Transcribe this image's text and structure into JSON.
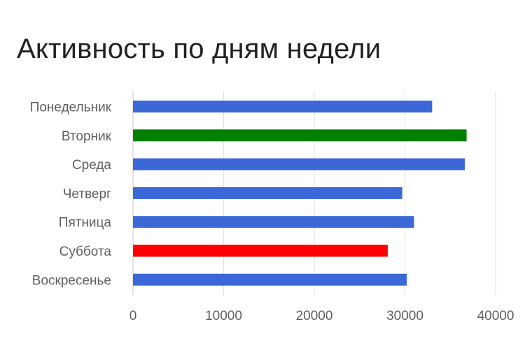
{
  "chart_data": {
    "type": "bar",
    "orientation": "horizontal",
    "title": "Активность по дням недели",
    "xlabel": "",
    "ylabel": "",
    "categories": [
      "Понедельник",
      "Вторник",
      "Среда",
      "Четверг",
      "Пятница",
      "Суббота",
      "Воскресенье"
    ],
    "values": [
      33000,
      36800,
      36600,
      29700,
      31000,
      28100,
      30200
    ],
    "colors": [
      "#3c68d7",
      "#008000",
      "#3c68d7",
      "#3c68d7",
      "#3c68d7",
      "#ff0000",
      "#3c68d7"
    ],
    "xlim": [
      0,
      40000
    ],
    "xticks": [
      0,
      10000,
      20000,
      30000,
      40000
    ],
    "xtick_labels": [
      "0",
      "10000",
      "20000",
      "30000",
      "40000"
    ],
    "grid": true,
    "legend": "none"
  }
}
